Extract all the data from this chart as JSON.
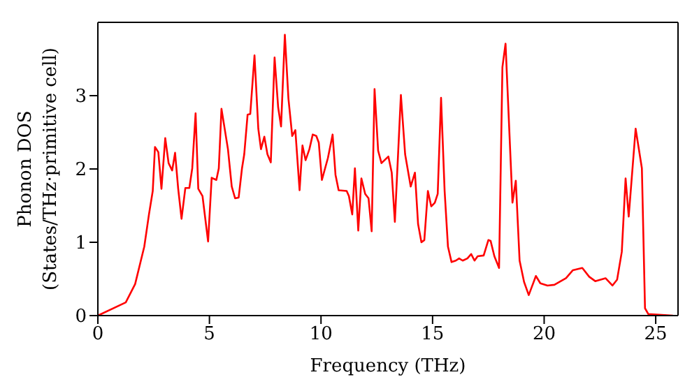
{
  "chart_data": {
    "type": "line",
    "xlabel": "Frequency (THz)",
    "ylabel": "Phonon DOS\n(States/THz·primitive cell)",
    "x": [
      0,
      1.25,
      1.67,
      2.08,
      2.29,
      2.46,
      2.56,
      2.71,
      2.85,
      3.02,
      3.17,
      3.33,
      3.46,
      3.6,
      3.75,
      3.92,
      4.1,
      4.23,
      4.38,
      4.5,
      4.69,
      4.94,
      5.1,
      5.31,
      5.42,
      5.54,
      5.83,
      6.0,
      6.15,
      6.31,
      6.46,
      6.56,
      6.71,
      6.83,
      7.02,
      7.19,
      7.31,
      7.46,
      7.6,
      7.75,
      7.92,
      8.08,
      8.21,
      8.38,
      8.54,
      8.71,
      8.85,
      9.04,
      9.17,
      9.31,
      9.48,
      9.63,
      9.79,
      9.9,
      10.04,
      10.31,
      10.52,
      10.65,
      10.79,
      11.15,
      11.25,
      11.4,
      11.52,
      11.67,
      11.81,
      11.98,
      12.13,
      12.27,
      12.4,
      12.56,
      12.71,
      13.02,
      13.17,
      13.31,
      13.58,
      13.77,
      14.02,
      14.21,
      14.35,
      14.5,
      14.63,
      14.79,
      14.94,
      15.1,
      15.23,
      15.38,
      15.54,
      15.69,
      15.85,
      16.04,
      16.19,
      16.35,
      16.56,
      16.73,
      16.88,
      17.02,
      17.29,
      17.5,
      17.6,
      17.77,
      17.98,
      18.13,
      18.27,
      18.58,
      18.73,
      18.9,
      19.1,
      19.31,
      19.63,
      19.83,
      20.15,
      20.46,
      20.98,
      21.29,
      21.71,
      22.02,
      22.29,
      22.75,
      23.06,
      23.27,
      23.48,
      23.65,
      23.79,
      24.1,
      24.38,
      24.52,
      24.67,
      25.77
    ],
    "series": [
      {
        "color": "#ff0000",
        "values": [
          0,
          0.18,
          0.43,
          0.94,
          1.38,
          1.7,
          2.3,
          2.23,
          1.73,
          2.42,
          2.08,
          1.98,
          2.22,
          1.73,
          1.32,
          1.74,
          1.74,
          2.01,
          2.76,
          1.73,
          1.63,
          1.01,
          1.88,
          1.85,
          2.01,
          2.82,
          2.27,
          1.76,
          1.6,
          1.61,
          2.01,
          2.2,
          2.74,
          2.75,
          3.55,
          2.55,
          2.27,
          2.44,
          2.2,
          2.09,
          3.52,
          2.84,
          2.58,
          3.83,
          2.96,
          2.45,
          2.53,
          1.71,
          2.32,
          2.12,
          2.27,
          2.47,
          2.45,
          2.36,
          1.85,
          2.15,
          2.47,
          1.92,
          1.71,
          1.7,
          1.63,
          1.38,
          2.01,
          1.16,
          1.87,
          1.66,
          1.6,
          1.15,
          3.09,
          2.25,
          2.08,
          2.17,
          1.95,
          1.28,
          3.01,
          2.2,
          1.76,
          1.95,
          1.25,
          1.0,
          1.03,
          1.7,
          1.49,
          1.54,
          1.66,
          2.97,
          1.7,
          0.94,
          0.73,
          0.75,
          0.78,
          0.75,
          0.78,
          0.84,
          0.75,
          0.81,
          0.82,
          1.03,
          1.02,
          0.81,
          0.65,
          3.39,
          3.71,
          1.54,
          1.84,
          0.75,
          0.46,
          0.28,
          0.54,
          0.44,
          0.41,
          0.42,
          0.51,
          0.62,
          0.65,
          0.53,
          0.47,
          0.51,
          0.41,
          0.49,
          0.87,
          1.87,
          1.35,
          2.55,
          2.01,
          0.1,
          0.02,
          0
        ]
      }
    ],
    "xlim": [
      0,
      26
    ],
    "xticks": [
      0,
      5,
      10,
      15,
      20,
      25
    ],
    "ylim": [
      0,
      4
    ],
    "yticks": [
      0,
      1,
      2,
      3
    ],
    "marker": "none",
    "line_style": "solid"
  }
}
